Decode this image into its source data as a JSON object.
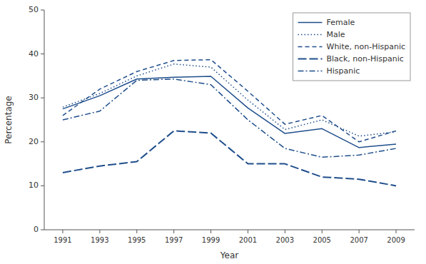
{
  "chart_data": {
    "type": "line",
    "xlabel": "Year",
    "ylabel": "Percentage",
    "x": [
      1991,
      1993,
      1995,
      1997,
      1999,
      2001,
      2003,
      2005,
      2007,
      2009
    ],
    "color": "#1f4e8c",
    "series": [
      {
        "name": "Female",
        "line_style": "solid",
        "values": [
          27.5,
          30.5,
          34.3,
          34.7,
          34.9,
          27.7,
          21.9,
          23.0,
          18.7,
          19.5
        ]
      },
      {
        "name": "Male",
        "line_style": "dotted",
        "values": [
          27.9,
          31.0,
          35.0,
          37.7,
          37.0,
          29.5,
          22.8,
          25.0,
          21.3,
          22.3
        ]
      },
      {
        "name": "White, non-Hispanic",
        "line_style": "dashed",
        "values": [
          26.0,
          32.0,
          36.0,
          38.5,
          38.7,
          31.5,
          24.0,
          26.0,
          20.0,
          22.5
        ]
      },
      {
        "name": "Black, non-Hispanic",
        "line_style": "longdash",
        "values": [
          13.0,
          14.5,
          15.5,
          22.5,
          22.0,
          15.0,
          15.0,
          12.0,
          11.5,
          10.0
        ]
      },
      {
        "name": "Hispanic",
        "line_style": "dashdot",
        "values": [
          25.0,
          27.0,
          34.0,
          34.3,
          33.0,
          25.0,
          18.5,
          16.5,
          17.0,
          18.5
        ]
      }
    ],
    "xlim": [
      1990,
      2010
    ],
    "xticks": [
      1991,
      1993,
      1995,
      1997,
      1999,
      2001,
      2003,
      2005,
      2007,
      2009
    ],
    "ylim": [
      0,
      50
    ],
    "yticks": [
      0,
      10,
      20,
      30,
      40,
      50
    ],
    "grid": false,
    "legend": "upper right"
  }
}
